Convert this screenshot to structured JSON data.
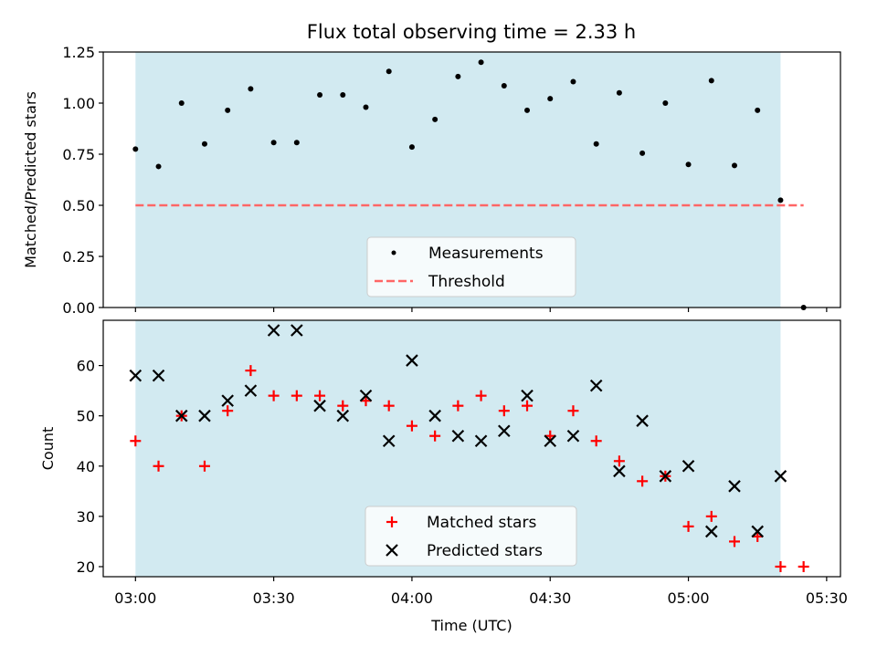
{
  "figure": {
    "title": "Flux total observing time = 2.33 h"
  },
  "chart_data": [
    {
      "type": "scatter",
      "ylabel": "Matched/Predicted stars",
      "xlabel": "",
      "xlim": [
        "02:53",
        "05:33"
      ],
      "ylim": [
        0,
        1.25
      ],
      "yticks": [
        "0.00",
        "0.25",
        "0.50",
        "0.75",
        "1.00",
        "1.25"
      ],
      "observing_window": {
        "start": "03:00",
        "end": "05:20",
        "color": "#add8e6"
      },
      "legend": {
        "placement": "lower-center",
        "entries": [
          "Measurements",
          "Threshold"
        ]
      },
      "series": [
        {
          "name": "Measurements",
          "color": "#000000",
          "marker": "dot",
          "x": [
            "03:00",
            "03:05",
            "03:10",
            "03:15",
            "03:20",
            "03:25",
            "03:30",
            "03:35",
            "03:40",
            "03:45",
            "03:50",
            "03:55",
            "04:00",
            "04:05",
            "04:10",
            "04:15",
            "04:20",
            "04:25",
            "04:30",
            "04:35",
            "04:40",
            "04:45",
            "04:50",
            "04:55",
            "05:00",
            "05:05",
            "05:10",
            "05:15",
            "05:20",
            "05:25"
          ],
          "y": [
            0.775,
            0.69,
            1.0,
            0.8,
            0.965,
            1.07,
            0.807,
            0.807,
            1.04,
            1.04,
            0.98,
            1.155,
            0.785,
            0.92,
            1.13,
            1.2,
            1.085,
            0.965,
            1.022,
            1.105,
            0.8,
            1.05,
            0.755,
            1.0,
            0.7,
            1.11,
            0.695,
            0.965,
            0.525,
            0.0
          ]
        },
        {
          "name": "Threshold",
          "color": "#ff6666",
          "style": "dashed",
          "x": [
            "03:00",
            "05:25"
          ],
          "y": [
            0.5,
            0.5
          ]
        }
      ]
    },
    {
      "type": "scatter",
      "ylabel": "Count",
      "xlabel": "Time (UTC)",
      "xlim": [
        "02:53",
        "05:33"
      ],
      "ylim": [
        18,
        69
      ],
      "yticks": [
        "20",
        "30",
        "40",
        "50",
        "60"
      ],
      "xticks": [
        "03:00",
        "03:30",
        "04:00",
        "04:30",
        "05:00",
        "05:30"
      ],
      "observing_window": {
        "start": "03:00",
        "end": "05:20",
        "color": "#add8e6"
      },
      "legend": {
        "placement": "lower-center",
        "entries": [
          "Matched stars",
          "Predicted stars"
        ]
      },
      "series": [
        {
          "name": "Matched stars",
          "color": "#ff0000",
          "marker": "plus",
          "x": [
            "03:00",
            "03:05",
            "03:10",
            "03:15",
            "03:20",
            "03:25",
            "03:30",
            "03:35",
            "03:40",
            "03:45",
            "03:50",
            "03:55",
            "04:00",
            "04:05",
            "04:10",
            "04:15",
            "04:20",
            "04:25",
            "04:30",
            "04:35",
            "04:40",
            "04:45",
            "04:50",
            "04:55",
            "05:00",
            "05:05",
            "05:10",
            "05:15",
            "05:20",
            "05:25"
          ],
          "y": [
            45,
            40,
            50,
            40,
            51,
            59,
            54,
            54,
            54,
            52,
            53,
            52,
            48,
            46,
            52,
            54,
            51,
            52,
            46,
            51,
            45,
            41,
            37,
            38,
            28,
            30,
            25,
            26,
            20,
            20
          ]
        },
        {
          "name": "Predicted stars",
          "color": "#000000",
          "marker": "x",
          "x": [
            "03:00",
            "03:05",
            "03:10",
            "03:15",
            "03:20",
            "03:25",
            "03:30",
            "03:35",
            "03:40",
            "03:45",
            "03:50",
            "03:55",
            "04:00",
            "04:05",
            "04:10",
            "04:15",
            "04:20",
            "04:25",
            "04:30",
            "04:35",
            "04:40",
            "04:45",
            "04:50",
            "04:55",
            "05:00",
            "05:05",
            "05:10",
            "05:15",
            "05:20"
          ],
          "y": [
            58,
            58,
            50,
            50,
            53,
            55,
            67,
            67,
            52,
            50,
            54,
            45,
            61,
            50,
            46,
            45,
            47,
            54,
            45,
            46,
            56,
            39,
            49,
            38,
            40,
            27,
            36,
            27,
            38
          ]
        }
      ]
    }
  ]
}
